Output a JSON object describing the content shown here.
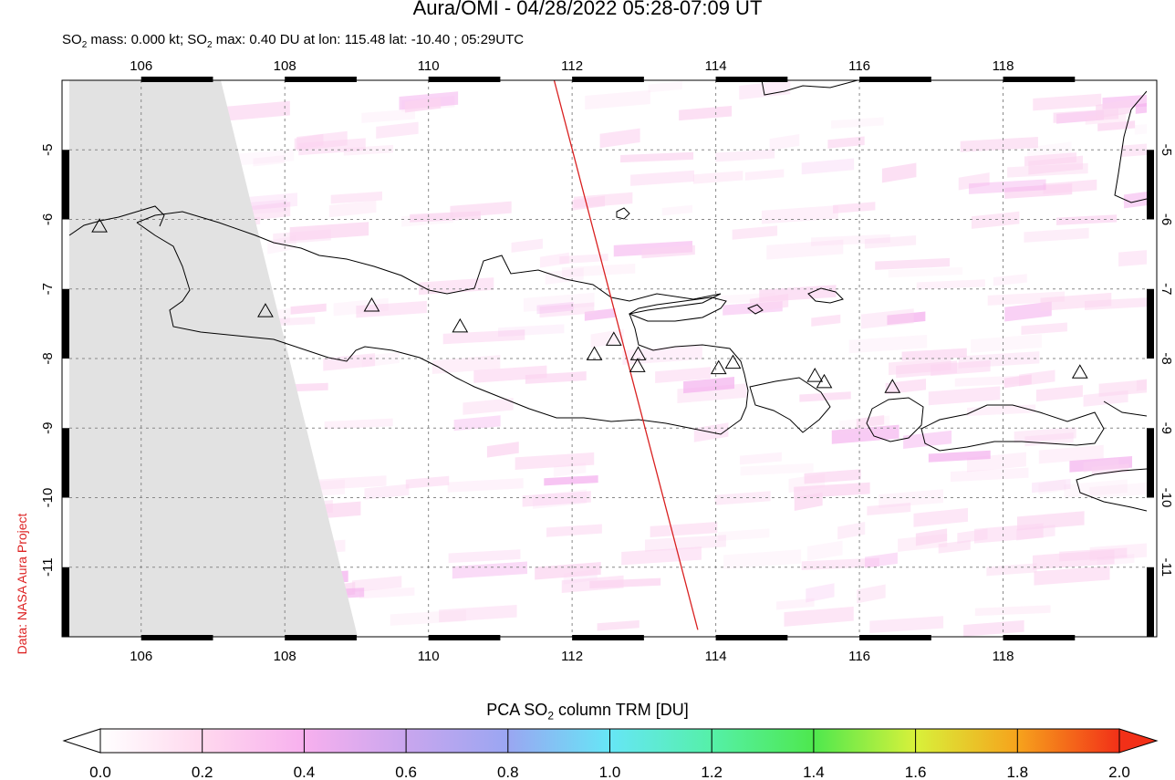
{
  "header": {
    "title": "Aura/OMI - 04/28/2022 05:28-07:09 UT",
    "subtitle_prefix": "SO",
    "subtitle_sub": "2",
    "subtitle_mid": " mass: 0.000 kt; SO",
    "subtitle_suffix": " max: 0.40 DU at lon: 115.48 lat: -10.40 ; 05:29UTC"
  },
  "credit": "Data: NASA Aura Project",
  "map": {
    "lon_range": [
      105,
      120
    ],
    "lat_range": [
      -12,
      -4
    ],
    "lon_ticks": [
      "106",
      "108",
      "110",
      "112",
      "114",
      "116",
      "118"
    ],
    "lat_ticks": [
      "-5",
      "-6",
      "-7",
      "-8",
      "-9",
      "-10",
      "-11"
    ],
    "colors": {
      "no_data": "#e2e2e2",
      "coast": "#000000",
      "track": "#d92020",
      "grid": "#888888"
    },
    "volcanoes": [
      {
        "lon": 105.42,
        "lat": -6.1
      },
      {
        "lon": 107.73,
        "lat": -7.32
      },
      {
        "lon": 109.21,
        "lat": -7.24
      },
      {
        "lon": 110.44,
        "lat": -7.54
      },
      {
        "lon": 112.31,
        "lat": -7.94
      },
      {
        "lon": 112.58,
        "lat": -7.73
      },
      {
        "lon": 112.92,
        "lat": -7.94
      },
      {
        "lon": 112.91,
        "lat": -8.11
      },
      {
        "lon": 114.04,
        "lat": -8.14
      },
      {
        "lon": 114.24,
        "lat": -8.06
      },
      {
        "lon": 115.38,
        "lat": -8.25
      },
      {
        "lon": 115.51,
        "lat": -8.34
      },
      {
        "lon": 116.46,
        "lat": -8.41
      },
      {
        "lon": 119.07,
        "lat": -8.2
      }
    ],
    "track": [
      {
        "lon": 111.75,
        "lat": -4.0
      },
      {
        "lon": 113.75,
        "lat": -11.9
      }
    ]
  },
  "colorbar": {
    "label_prefix": "PCA SO",
    "label_sub": "2",
    "label_suffix": " column TRM [DU]",
    "ticks": [
      "0.0",
      "0.2",
      "0.4",
      "0.6",
      "0.8",
      "1.0",
      "1.2",
      "1.4",
      "1.6",
      "1.8",
      "2.0"
    ],
    "range": [
      0.0,
      2.0
    ]
  }
}
